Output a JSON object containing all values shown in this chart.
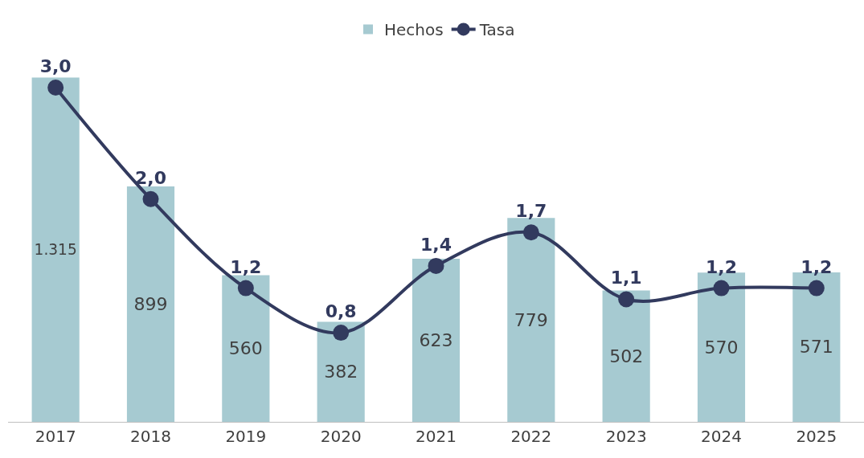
{
  "chart_data": {
    "type": "bar",
    "categories": [
      "2017",
      "2018",
      "2019",
      "2020",
      "2021",
      "2022",
      "2023",
      "2024",
      "2025"
    ],
    "series": [
      {
        "name": "Hechos",
        "color": "#a6cad1",
        "values": [
          1315,
          899,
          560,
          382,
          623,
          779,
          502,
          570,
          571
        ],
        "value_labels": [
          "1.315",
          "899",
          "560",
          "382",
          "623",
          "779",
          "502",
          "570",
          "571"
        ]
      },
      {
        "name": "Tasa",
        "type": "line",
        "axis": "y2",
        "color": "#323a5e",
        "values": [
          3.0,
          2.0,
          1.2,
          0.8,
          1.4,
          1.7,
          1.1,
          1.2,
          1.2
        ],
        "value_labels": [
          "3,0",
          "2,0",
          "1,2",
          "0,8",
          "1,4",
          "1,7",
          "1,1",
          "1,2",
          "1,2"
        ]
      }
    ],
    "tick_labels": "x",
    "legend": "top",
    "grid": false,
    "marker": "circle",
    "line_style": "solid"
  }
}
